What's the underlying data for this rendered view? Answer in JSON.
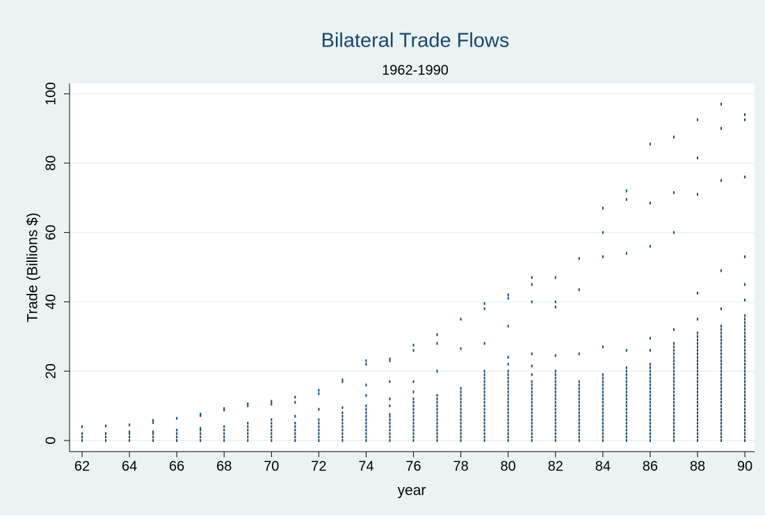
{
  "chart_data": {
    "type": "scatter",
    "title": "Bilateral Trade Flows",
    "subtitle": "1962-1990",
    "x_label": "year",
    "y_label": "Trade (Billions $)",
    "color": "#1a476f",
    "grid": true,
    "xlim": [
      61.47,
      90.41
    ],
    "ylim": [
      -3.2,
      103
    ],
    "xticks": [
      62,
      64,
      66,
      68,
      70,
      72,
      74,
      76,
      78,
      80,
      82,
      84,
      86,
      88,
      90
    ],
    "yticks": [
      0,
      20,
      40,
      60,
      80,
      100
    ],
    "x": [
      62,
      62,
      62,
      62,
      63,
      63,
      63,
      63,
      64,
      64,
      64,
      64,
      64,
      65,
      65,
      65,
      65,
      65,
      65,
      66,
      66,
      66,
      66,
      66,
      67,
      67,
      67,
      67,
      67,
      67,
      67,
      68,
      68,
      68,
      68,
      68,
      68,
      68,
      69,
      69,
      69,
      69,
      69,
      69,
      69,
      69,
      70,
      70,
      70,
      70,
      70,
      70,
      70,
      70,
      70,
      71,
      71,
      71,
      71,
      71,
      71,
      71,
      71,
      71,
      72,
      72,
      72,
      72,
      72,
      72,
      72,
      72,
      72,
      72,
      73,
      73,
      73,
      73,
      73,
      73,
      73,
      73,
      73,
      73,
      73,
      73,
      74,
      74,
      74,
      74,
      74,
      74,
      74,
      74,
      74,
      74,
      74,
      74,
      74,
      74,
      74,
      75,
      75,
      75,
      75,
      75,
      75,
      75,
      75,
      75,
      75,
      75,
      75,
      75,
      75,
      76,
      76,
      76,
      76,
      76,
      76,
      76,
      76,
      76,
      76,
      76,
      76,
      76,
      76,
      76,
      76,
      76,
      77,
      77,
      77,
      77,
      77,
      77,
      77,
      77,
      77,
      77,
      77,
      77,
      77,
      77,
      77,
      77,
      77,
      78,
      78,
      78,
      78,
      78,
      78,
      78,
      78,
      78,
      78,
      78,
      78,
      78,
      78,
      78,
      78,
      78,
      78,
      79,
      79,
      79,
      79,
      79,
      79,
      79,
      79,
      79,
      79,
      79,
      79,
      79,
      79,
      79,
      79,
      79,
      79,
      79,
      79,
      79,
      79,
      79,
      79,
      80,
      80,
      80,
      80,
      80,
      80,
      80,
      80,
      80,
      80,
      80,
      80,
      80,
      80,
      80,
      80,
      80,
      80,
      80,
      80,
      80,
      80,
      80,
      80,
      80,
      80,
      81,
      81,
      81,
      81,
      81,
      81,
      81,
      81,
      81,
      81,
      81,
      81,
      81,
      81,
      81,
      81,
      81,
      81,
      81,
      81,
      81,
      81,
      81,
      81,
      82,
      82,
      82,
      82,
      82,
      82,
      82,
      82,
      82,
      82,
      82,
      82,
      82,
      82,
      82,
      82,
      82,
      82,
      82,
      82,
      82,
      82,
      82,
      82,
      82,
      83,
      83,
      83,
      83,
      83,
      83,
      83,
      83,
      83,
      83,
      83,
      83,
      83,
      83,
      83,
      83,
      83,
      83,
      83,
      83,
      83,
      84,
      84,
      84,
      84,
      84,
      84,
      84,
      84,
      84,
      84,
      84,
      84,
      84,
      84,
      84,
      84,
      84,
      84,
      84,
      84,
      84,
      84,
      84,
      84,
      85,
      85,
      85,
      85,
      85,
      85,
      85,
      85,
      85,
      85,
      85,
      85,
      85,
      85,
      85,
      85,
      85,
      85,
      85,
      85,
      85,
      85,
      85,
      85,
      85,
      85,
      86,
      86,
      86,
      86,
      86,
      86,
      86,
      86,
      86,
      86,
      86,
      86,
      86,
      86,
      86,
      86,
      86,
      86,
      86,
      86,
      86,
      86,
      86,
      86,
      86,
      86,
      86,
      86,
      87,
      87,
      87,
      87,
      87,
      87,
      87,
      87,
      87,
      87,
      87,
      87,
      87,
      87,
      87,
      87,
      87,
      87,
      87,
      87,
      87,
      87,
      87,
      87,
      87,
      87,
      87,
      87,
      87,
      87,
      87,
      87,
      87,
      88,
      88,
      88,
      88,
      88,
      88,
      88,
      88,
      88,
      88,
      88,
      88,
      88,
      88,
      88,
      88,
      88,
      88,
      88,
      88,
      88,
      88,
      88,
      88,
      88,
      88,
      88,
      88,
      88,
      88,
      88,
      88,
      88,
      88,
      88,
      88,
      88,
      89,
      89,
      89,
      89,
      89,
      89,
      89,
      89,
      89,
      89,
      89,
      89,
      89,
      89,
      89,
      89,
      89,
      89,
      89,
      89,
      89,
      89,
      89,
      89,
      89,
      89,
      89,
      89,
      89,
      89,
      89,
      89,
      89,
      89,
      89,
      89,
      89,
      89,
      89,
      90,
      90,
      90,
      90,
      90,
      90,
      90,
      90,
      90,
      90,
      90,
      90,
      90,
      90,
      90,
      90,
      90,
      90,
      90,
      90,
      90,
      90,
      90,
      90,
      90,
      90,
      90,
      90,
      90,
      90,
      90,
      90,
      90,
      90,
      90,
      90,
      90,
      90,
      90,
      90,
      90,
      90,
      90
    ],
    "values": [
      0,
      1,
      2,
      4,
      0,
      1,
      2,
      4.2,
      0,
      1,
      2,
      2.5,
      4.5,
      0,
      1,
      2,
      2.5,
      5.2,
      5.8,
      0,
      1,
      2,
      3,
      6.4,
      0,
      1,
      2,
      3,
      3.5,
      7.2,
      7.6,
      0,
      1,
      2,
      3,
      4,
      8.8,
      9.2,
      0,
      1,
      2,
      3,
      4,
      5,
      10,
      10.6,
      0,
      1,
      2,
      3,
      4,
      5,
      6,
      10.5,
      11.3,
      0,
      1,
      2,
      3,
      4,
      5,
      7,
      11,
      12.5,
      0,
      1,
      2,
      3,
      4,
      5,
      6,
      9,
      13.5,
      14.5,
      0,
      1,
      2,
      3,
      4,
      5,
      6,
      7,
      8,
      9.5,
      17,
      17.5,
      0,
      1,
      2,
      3,
      4,
      5,
      6,
      7,
      8,
      9,
      10,
      13,
      16,
      22,
      23,
      0,
      1,
      2,
      3,
      4,
      5,
      6,
      7,
      7.5,
      10,
      12,
      17,
      23,
      23.5,
      0,
      1,
      2,
      3,
      4,
      5,
      6,
      7,
      8,
      9,
      10,
      11,
      12,
      14,
      17,
      26,
      27.5,
      0,
      1,
      2,
      3,
      4,
      5,
      6,
      7,
      8,
      9,
      10,
      11,
      12,
      13,
      20,
      28,
      30.5,
      0,
      1,
      2,
      3,
      4,
      5,
      6,
      7,
      8,
      9,
      10,
      11,
      12,
      13,
      14,
      15,
      26.5,
      35,
      0,
      1,
      2,
      3,
      4,
      5,
      6,
      7,
      8,
      9,
      10,
      11,
      12,
      13,
      14,
      15,
      16,
      17,
      18,
      19,
      20,
      28,
      38,
      39.5,
      0,
      1,
      2,
      3,
      4,
      5,
      6,
      7,
      8,
      9,
      10,
      11,
      12,
      13,
      14,
      15,
      16,
      17,
      18,
      19,
      20,
      22,
      24,
      33,
      41,
      42,
      0,
      1,
      2,
      3,
      4,
      5,
      6,
      7,
      8,
      9,
      10,
      11,
      12,
      13,
      14,
      15,
      16,
      17,
      19,
      21.5,
      25,
      40,
      45,
      47,
      0,
      1,
      2,
      3,
      4,
      5,
      6,
      7,
      8,
      9,
      10,
      11,
      12,
      13,
      14,
      15,
      16,
      17,
      18,
      19,
      20,
      24.5,
      38.5,
      40,
      47,
      0,
      1,
      2,
      3,
      4,
      5,
      6,
      7,
      8,
      9,
      10,
      11,
      12,
      13,
      14,
      15,
      16,
      17,
      25,
      43.5,
      52.5,
      0,
      1,
      2,
      3,
      4,
      5,
      6,
      7,
      8,
      9,
      10,
      11,
      12,
      13,
      14,
      15,
      16,
      17,
      18,
      19,
      27,
      53,
      60,
      67,
      0,
      1,
      2,
      3,
      4,
      5,
      6,
      7,
      8,
      9,
      10,
      11,
      12,
      13,
      14,
      15,
      16,
      17,
      18,
      19,
      20,
      21,
      26,
      54,
      69.5,
      72,
      0,
      1,
      2,
      3,
      4,
      5,
      6,
      7,
      8,
      9,
      10,
      11,
      12,
      13,
      14,
      15,
      16,
      17,
      18,
      19,
      20,
      21,
      22,
      26,
      29.5,
      56,
      68.5,
      85.5,
      0,
      1,
      2,
      3,
      4,
      5,
      6,
      7,
      8,
      9,
      10,
      11,
      12,
      13,
      14,
      15,
      16,
      17,
      18,
      19,
      20,
      21,
      22,
      23,
      24,
      25,
      26,
      27,
      28,
      32,
      60,
      71.5,
      87.5,
      0,
      1,
      2,
      3,
      4,
      5,
      6,
      7,
      8,
      9,
      10,
      11,
      12,
      13,
      14,
      15,
      16,
      17,
      18,
      19,
      20,
      21,
      22,
      23,
      24,
      25,
      26,
      27,
      28,
      29,
      30,
      31,
      35,
      42.5,
      71,
      81.5,
      92.5,
      0,
      1,
      2,
      3,
      4,
      5,
      6,
      7,
      8,
      9,
      10,
      11,
      12,
      13,
      14,
      15,
      16,
      17,
      18,
      19,
      20,
      21,
      22,
      23,
      24,
      25,
      26,
      27,
      28,
      29,
      30,
      31,
      32,
      33,
      38,
      49,
      75,
      90,
      97,
      0,
      1,
      2,
      3,
      4,
      5,
      6,
      7,
      8,
      9,
      10,
      11,
      12,
      13,
      14,
      15,
      16,
      17,
      18,
      19,
      20,
      21,
      22,
      23,
      24,
      25,
      26,
      27,
      28,
      29,
      30,
      31,
      32,
      33,
      34,
      35,
      36,
      40.5,
      45,
      53,
      76,
      92.5,
      94
    ]
  }
}
